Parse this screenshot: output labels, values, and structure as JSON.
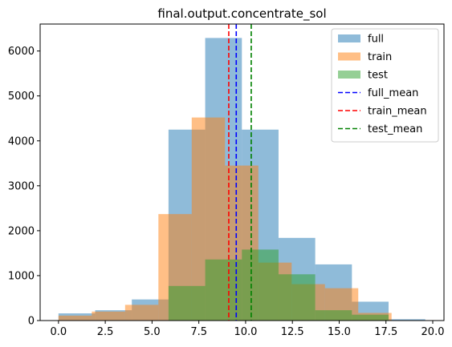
{
  "chart_data": {
    "type": "histogram",
    "title": "final.output.concentrate_sol",
    "xlabel": "",
    "ylabel": "",
    "xlim": [
      -0.98,
      20.6
    ],
    "ylim": [
      0,
      6600
    ],
    "xticks": [
      0.0,
      2.5,
      5.0,
      7.5,
      10.0,
      12.5,
      15.0,
      17.5,
      20.0
    ],
    "xtick_labels": [
      "0.0",
      "2.5",
      "5.0",
      "7.5",
      "10.0",
      "12.5",
      "15.0",
      "17.5",
      "20.0"
    ],
    "yticks": [
      0,
      1000,
      2000,
      3000,
      4000,
      5000,
      6000
    ],
    "ytick_labels": [
      "0",
      "1000",
      "2000",
      "3000",
      "4000",
      "5000",
      "6000"
    ],
    "legend_position": "top-right",
    "series": [
      {
        "name": "full",
        "color": "#1f77b4",
        "opacity": 0.5,
        "bins": [
          {
            "x0": 0.0,
            "x1": 1.96,
            "value": 160
          },
          {
            "x0": 1.96,
            "x1": 3.92,
            "value": 230
          },
          {
            "x0": 3.92,
            "x1": 5.88,
            "value": 470
          },
          {
            "x0": 5.88,
            "x1": 7.84,
            "value": 4250
          },
          {
            "x0": 7.84,
            "x1": 9.8,
            "value": 6290
          },
          {
            "x0": 9.8,
            "x1": 11.76,
            "value": 4250
          },
          {
            "x0": 11.76,
            "x1": 13.72,
            "value": 1840
          },
          {
            "x0": 13.72,
            "x1": 15.68,
            "value": 1250
          },
          {
            "x0": 15.68,
            "x1": 17.64,
            "value": 420
          },
          {
            "x0": 17.64,
            "x1": 19.6,
            "value": 30
          }
        ]
      },
      {
        "name": "train",
        "color": "#ff7f0e",
        "opacity": 0.5,
        "bins": [
          {
            "x0": 0.0,
            "x1": 1.78,
            "value": 110
          },
          {
            "x0": 1.78,
            "x1": 3.56,
            "value": 200
          },
          {
            "x0": 3.56,
            "x1": 5.34,
            "value": 350
          },
          {
            "x0": 5.34,
            "x1": 7.12,
            "value": 2370
          },
          {
            "x0": 7.12,
            "x1": 8.9,
            "value": 4520
          },
          {
            "x0": 8.9,
            "x1": 10.68,
            "value": 3450
          },
          {
            "x0": 10.68,
            "x1": 12.46,
            "value": 1290
          },
          {
            "x0": 12.46,
            "x1": 14.24,
            "value": 810
          },
          {
            "x0": 14.24,
            "x1": 16.02,
            "value": 720
          },
          {
            "x0": 16.02,
            "x1": 17.8,
            "value": 170
          }
        ]
      },
      {
        "name": "test",
        "color": "#2ca02c",
        "opacity": 0.5,
        "bins": [
          {
            "x0": 5.88,
            "x1": 7.84,
            "value": 770
          },
          {
            "x0": 7.84,
            "x1": 9.8,
            "value": 1360
          },
          {
            "x0": 9.8,
            "x1": 11.76,
            "value": 1580
          },
          {
            "x0": 11.76,
            "x1": 13.72,
            "value": 1030
          },
          {
            "x0": 13.72,
            "x1": 15.68,
            "value": 230
          },
          {
            "x0": 15.68,
            "x1": 17.64,
            "value": 130
          }
        ]
      }
    ],
    "lines": [
      {
        "name": "full_mean",
        "x": 9.5,
        "color": "#0000ff",
        "style": "dashed"
      },
      {
        "name": "train_mean",
        "x": 9.1,
        "color": "#ff0000",
        "style": "dashed"
      },
      {
        "name": "test_mean",
        "x": 10.3,
        "color": "#008000",
        "style": "dashed"
      }
    ]
  }
}
